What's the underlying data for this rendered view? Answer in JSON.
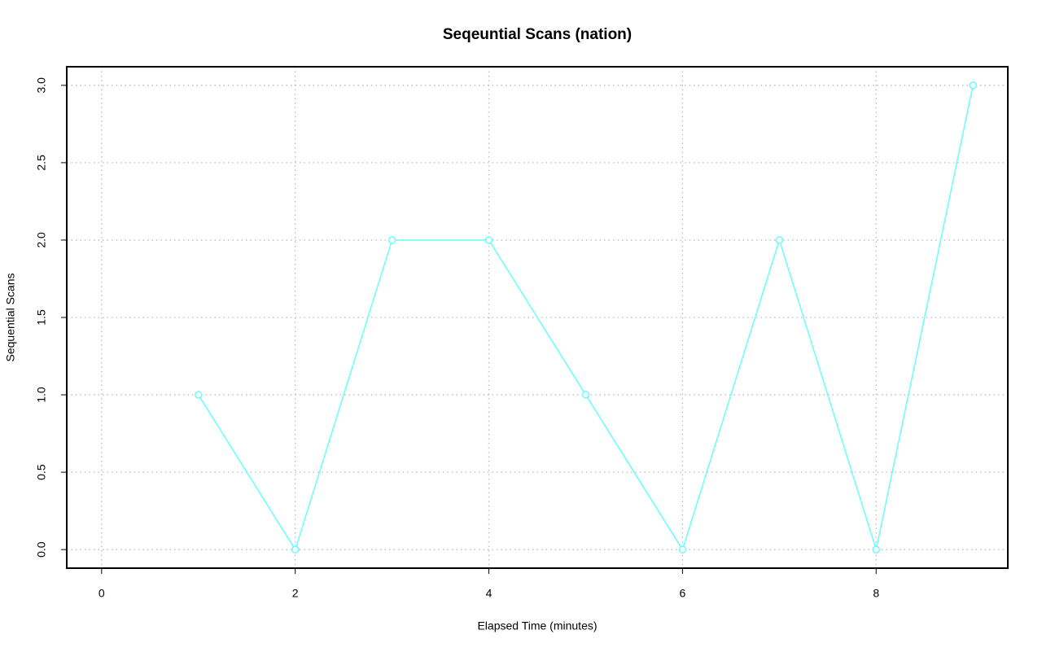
{
  "chart_data": {
    "type": "line",
    "title": "Seqeuntial Scans (nation)",
    "xlabel": "Elapsed Time (minutes)",
    "ylabel": "Sequential Scans",
    "x": [
      1,
      2,
      3,
      4,
      5,
      6,
      7,
      8,
      9
    ],
    "series": [
      {
        "name": "nation",
        "color": "#66ffff",
        "values": [
          1,
          0,
          2,
          2,
          1,
          0,
          2,
          0,
          3
        ]
      }
    ],
    "xlim": [
      -0.36,
      9.36
    ],
    "ylim": [
      -0.12,
      3.12
    ],
    "xticks": [
      0,
      2,
      4,
      6,
      8
    ],
    "yticks": [
      {
        "value": 0,
        "label": "0.0"
      },
      0.5,
      {
        "value": 1,
        "label": "1.0"
      },
      1.5,
      {
        "value": 2,
        "label": "2.0"
      },
      2.5,
      {
        "value": 3,
        "label": "3.0"
      }
    ],
    "grid": true
  }
}
